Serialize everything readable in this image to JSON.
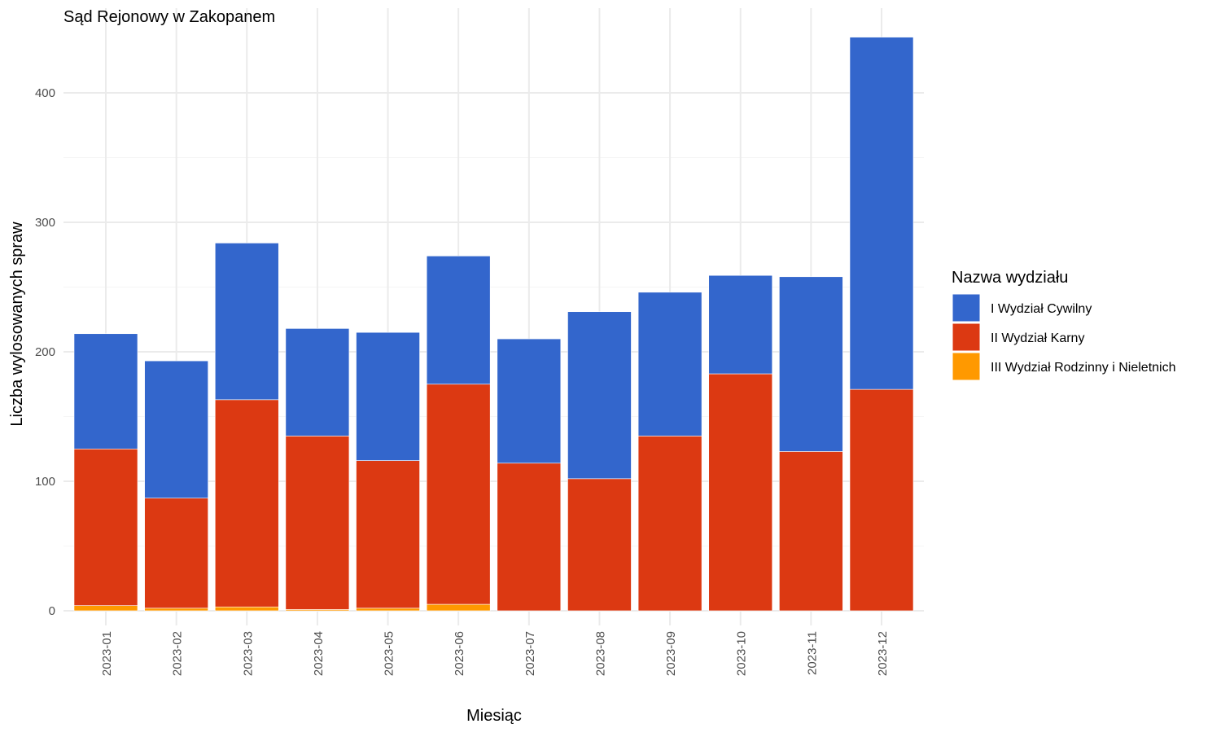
{
  "chart_data": {
    "type": "bar",
    "stacked": true,
    "title": "Sąd Rejonowy w Zakopanem",
    "xlabel": "Miesiąc",
    "ylabel": "Liczba wylosowanych spraw",
    "ylim": [
      0,
      450
    ],
    "yticks": [
      0,
      100,
      200,
      300,
      400
    ],
    "grid": true,
    "legend": {
      "title": "Nazwa wydziału",
      "placement": "right"
    },
    "categories": [
      "2023-01",
      "2023-02",
      "2023-03",
      "2023-04",
      "2023-05",
      "2023-06",
      "2023-07",
      "2023-08",
      "2023-09",
      "2023-10",
      "2023-11",
      "2023-12"
    ],
    "series": [
      {
        "name": "III Wydział Rodzinny i Nieletnich",
        "color": "#ff9900",
        "values": [
          4,
          2,
          3,
          1,
          2,
          5,
          0,
          0,
          0,
          0,
          0,
          0
        ]
      },
      {
        "name": "II Wydział Karny",
        "color": "#dc3912",
        "values": [
          121,
          85,
          160,
          134,
          114,
          170,
          114,
          102,
          135,
          183,
          123,
          171
        ]
      },
      {
        "name": "I Wydział Cywilny",
        "color": "#3366cc",
        "values": [
          89,
          106,
          121,
          83,
          99,
          99,
          96,
          129,
          111,
          76,
          135,
          272
        ]
      }
    ],
    "legend_order": [
      "I Wydział Cywilny",
      "II Wydział Karny",
      "III Wydział Rodzinny i Nieletnich"
    ]
  }
}
